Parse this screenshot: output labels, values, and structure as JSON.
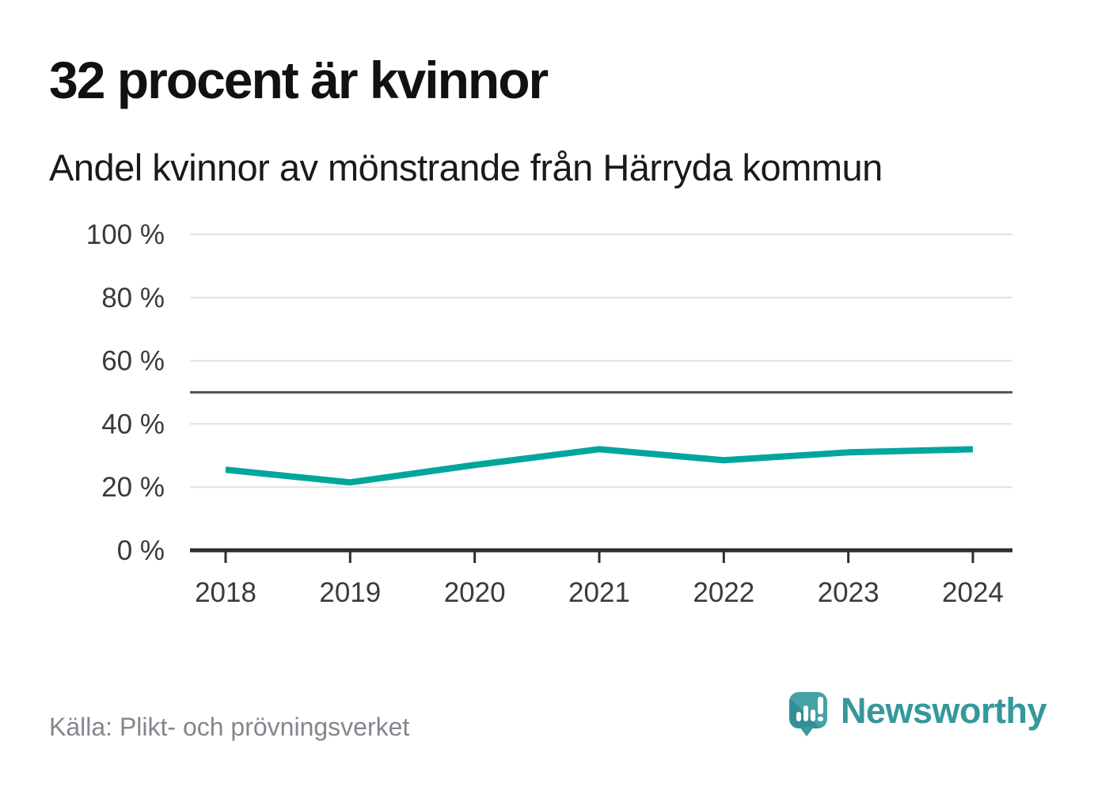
{
  "header": {
    "title": "32 procent är kvinnor",
    "subtitle": "Andel kvinnor av mönstrande från Härryda kommun"
  },
  "chart_data": {
    "type": "line",
    "title": "32 procent är kvinnor",
    "subtitle": "Andel kvinnor av mönstrande från Härryda kommun",
    "x": [
      "2018",
      "2019",
      "2020",
      "2021",
      "2022",
      "2023",
      "2024"
    ],
    "series": [
      {
        "name": "Andel kvinnor av mönstrande",
        "color": "#00a69c",
        "values": [
          25.5,
          21.5,
          27,
          32,
          28.5,
          31,
          32
        ]
      }
    ],
    "xlabel": "",
    "ylabel": "",
    "ylim": [
      0,
      100
    ],
    "yticks": [
      0,
      20,
      40,
      60,
      80,
      100
    ],
    "ytick_labels": [
      "0 %",
      "20 %",
      "40 %",
      "60 %",
      "80 %",
      "100 %"
    ],
    "xtick_labels": [
      "2018",
      "2019",
      "2020",
      "2021",
      "2022",
      "2023",
      "2024"
    ],
    "reference_line": {
      "value": 50
    },
    "grid": "horizontal",
    "legend": "none"
  },
  "footer": {
    "source": "Källa: Plikt- och prövningsverket",
    "brand_name": "Newsworthy"
  },
  "icons": {
    "brand_logo": "newsworthy-speech-bubble-bar-chart-icon"
  },
  "colors": {
    "background": "#ffffff",
    "line": "#00a69c",
    "grid": "#e2e2e2",
    "reference_line": "#55555a",
    "axis": "#2e2e2e",
    "axis_label": "#3a3a3a",
    "title": "#111111",
    "subtitle": "#1a1a1a",
    "source": "#85858d",
    "brand": "#35989b"
  }
}
